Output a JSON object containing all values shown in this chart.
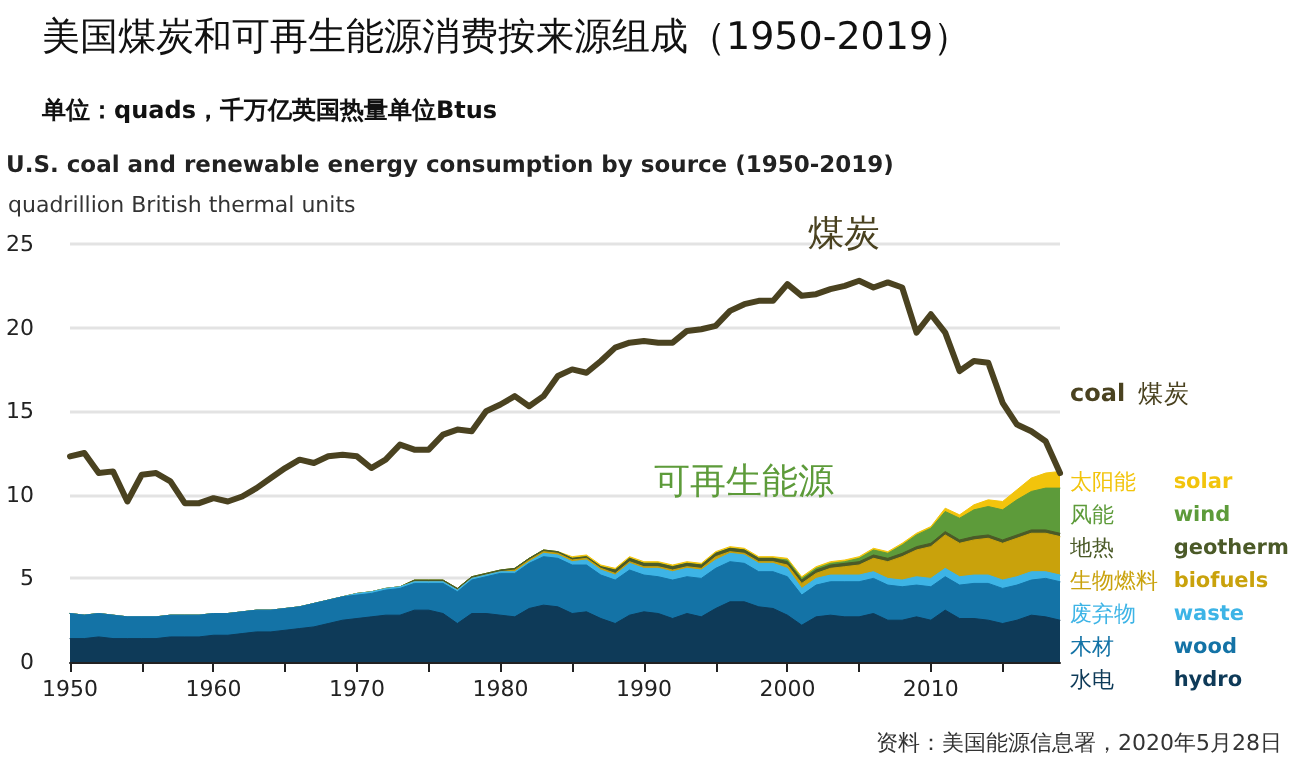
{
  "chart_data": {
    "type": "area",
    "title": "美国煤炭和可再生能源消费按来源组成（1950-2019）",
    "subtitle": "单位：quads，千万亿英国热量单位Btus",
    "ylabel": "quadrillion British thermal units",
    "annotations": [
      "U.S. coal and renewable energy consumption by source (1950-2019)",
      "煤炭",
      "可再生能源",
      "资料：美国能源信息署，2020年5月28日"
    ],
    "x": [
      1950,
      1951,
      1952,
      1953,
      1954,
      1955,
      1956,
      1957,
      1958,
      1959,
      1960,
      1961,
      1962,
      1963,
      1964,
      1965,
      1966,
      1967,
      1968,
      1969,
      1970,
      1971,
      1972,
      1973,
      1974,
      1975,
      1976,
      1977,
      1978,
      1979,
      1980,
      1981,
      1982,
      1983,
      1984,
      1985,
      1986,
      1987,
      1988,
      1989,
      1990,
      1991,
      1992,
      1993,
      1994,
      1995,
      1996,
      1997,
      1998,
      1999,
      2000,
      2001,
      2002,
      2003,
      2004,
      2005,
      2006,
      2007,
      2008,
      2009,
      2010,
      2011,
      2012,
      2013,
      2014,
      2015,
      2016,
      2017,
      2018,
      2019
    ],
    "stacked": true,
    "xlim": [
      1950,
      2019
    ],
    "ylim": [
      0,
      25
    ],
    "xticks": [
      1950,
      {
        "value": 1955,
        "label": null
      },
      1960,
      {
        "value": 1965,
        "label": null
      },
      1970,
      {
        "value": 1975,
        "label": null
      },
      1980,
      {
        "value": 1985,
        "label": null
      },
      1990,
      {
        "value": 1995,
        "label": null
      },
      2000,
      {
        "value": 2005,
        "label": null
      },
      2010,
      {
        "value": 2015,
        "label": null
      }
    ],
    "yticks": [
      0,
      5,
      10,
      15,
      20,
      25
    ],
    "grid": "y",
    "marker": "none",
    "line_style": "solid",
    "series": [
      {
        "name": "水电 hydro",
        "color": "#0e3a58",
        "values": [
          1.4,
          1.4,
          1.5,
          1.4,
          1.4,
          1.4,
          1.4,
          1.5,
          1.5,
          1.5,
          1.6,
          1.6,
          1.7,
          1.8,
          1.8,
          1.9,
          2.0,
          2.1,
          2.3,
          2.5,
          2.6,
          2.7,
          2.8,
          2.8,
          3.1,
          3.1,
          2.9,
          2.3,
          2.9,
          2.9,
          2.8,
          2.7,
          3.2,
          3.4,
          3.3,
          2.9,
          3.0,
          2.6,
          2.3,
          2.8,
          3.0,
          2.9,
          2.6,
          2.9,
          2.7,
          3.2,
          3.6,
          3.6,
          3.3,
          3.2,
          2.8,
          2.2,
          2.7,
          2.8,
          2.7,
          2.7,
          2.9,
          2.5,
          2.5,
          2.7,
          2.5,
          3.1,
          2.6,
          2.6,
          2.5,
          2.3,
          2.5,
          2.8,
          2.7,
          2.5
        ]
      },
      {
        "name": "木材 wood",
        "color": "#1473a6",
        "values": [
          1.5,
          1.4,
          1.4,
          1.4,
          1.3,
          1.3,
          1.3,
          1.3,
          1.3,
          1.3,
          1.3,
          1.3,
          1.3,
          1.3,
          1.3,
          1.3,
          1.3,
          1.4,
          1.4,
          1.4,
          1.4,
          1.4,
          1.5,
          1.6,
          1.6,
          1.6,
          1.8,
          1.9,
          2.0,
          2.2,
          2.5,
          2.6,
          2.7,
          2.9,
          2.9,
          2.9,
          2.8,
          2.6,
          2.6,
          2.7,
          2.2,
          2.2,
          2.3,
          2.2,
          2.3,
          2.4,
          2.4,
          2.3,
          2.1,
          2.2,
          2.3,
          1.8,
          1.9,
          2.0,
          2.1,
          2.1,
          2.1,
          2.1,
          2.0,
          1.9,
          2.0,
          2.0,
          2.0,
          2.1,
          2.2,
          2.1,
          2.1,
          2.1,
          2.3,
          2.3
        ]
      },
      {
        "name": "废弃物 waste",
        "color": "#3db4e6",
        "values": [
          0,
          0,
          0,
          0,
          0,
          0,
          0,
          0,
          0,
          0,
          0,
          0,
          0,
          0,
          0,
          0,
          0,
          0,
          0,
          0,
          0.1,
          0.1,
          0.1,
          0.1,
          0.1,
          0.1,
          0.1,
          0.1,
          0.1,
          0.1,
          0.1,
          0.1,
          0.1,
          0.2,
          0.2,
          0.2,
          0.3,
          0.3,
          0.3,
          0.4,
          0.4,
          0.5,
          0.5,
          0.5,
          0.5,
          0.5,
          0.5,
          0.5,
          0.5,
          0.5,
          0.5,
          0.4,
          0.4,
          0.4,
          0.4,
          0.4,
          0.4,
          0.4,
          0.4,
          0.5,
          0.5,
          0.5,
          0.5,
          0.5,
          0.5,
          0.5,
          0.5,
          0.5,
          0.4,
          0.4
        ]
      },
      {
        "name": "生物燃料 biofuels",
        "color": "#c9a20c",
        "values": [
          0,
          0,
          0,
          0,
          0,
          0,
          0,
          0,
          0,
          0,
          0,
          0,
          0,
          0,
          0,
          0,
          0,
          0,
          0,
          0,
          0,
          0,
          0,
          0,
          0,
          0,
          0,
          0,
          0,
          0,
          0,
          0.1,
          0.1,
          0.1,
          0.1,
          0.1,
          0.1,
          0.1,
          0.1,
          0.1,
          0.1,
          0.1,
          0.1,
          0.1,
          0.1,
          0.2,
          0.1,
          0.1,
          0.1,
          0.1,
          0.2,
          0.3,
          0.3,
          0.4,
          0.5,
          0.6,
          0.8,
          1.0,
          1.4,
          1.6,
          1.9,
          2.0,
          2.0,
          2.1,
          2.2,
          2.2,
          2.3,
          2.3,
          2.3,
          2.3
        ]
      },
      {
        "name": "地热 geotherm",
        "color": "#4b5a28",
        "values": [
          0,
          0,
          0,
          0,
          0,
          0,
          0,
          0,
          0,
          0,
          0,
          0,
          0,
          0,
          0,
          0,
          0,
          0,
          0,
          0,
          0,
          0,
          0,
          0,
          0.1,
          0.1,
          0.1,
          0.1,
          0.1,
          0.1,
          0.1,
          0.1,
          0.1,
          0.1,
          0.1,
          0.1,
          0.1,
          0.1,
          0.2,
          0.2,
          0.2,
          0.2,
          0.2,
          0.2,
          0.2,
          0.2,
          0.2,
          0.2,
          0.2,
          0.2,
          0.2,
          0.2,
          0.2,
          0.2,
          0.2,
          0.2,
          0.2,
          0.2,
          0.2,
          0.2,
          0.2,
          0.2,
          0.2,
          0.2,
          0.2,
          0.2,
          0.2,
          0.2,
          0.2,
          0.2
        ]
      },
      {
        "name": "风能 wind",
        "color": "#5d9b3a",
        "values": [
          0,
          0,
          0,
          0,
          0,
          0,
          0,
          0,
          0,
          0,
          0,
          0,
          0,
          0,
          0,
          0,
          0,
          0,
          0,
          0,
          0,
          0,
          0,
          0,
          0,
          0,
          0,
          0,
          0,
          0,
          0,
          0,
          0,
          0,
          0,
          0,
          0,
          0,
          0,
          0,
          0,
          0,
          0,
          0,
          0,
          0,
          0,
          0,
          0,
          0,
          0.1,
          0.1,
          0.1,
          0.1,
          0.1,
          0.2,
          0.3,
          0.3,
          0.5,
          0.7,
          0.9,
          1.2,
          1.3,
          1.6,
          1.7,
          1.8,
          2.1,
          2.3,
          2.5,
          2.7
        ]
      },
      {
        "name": "太阳能 solar",
        "color": "#f2c40c",
        "values": [
          0,
          0,
          0,
          0,
          0,
          0,
          0,
          0,
          0,
          0,
          0,
          0,
          0,
          0,
          0,
          0,
          0,
          0,
          0,
          0,
          0,
          0,
          0,
          0,
          0,
          0,
          0,
          0,
          0,
          0,
          0,
          0,
          0,
          0,
          0,
          0.1,
          0.1,
          0.1,
          0.1,
          0.1,
          0.1,
          0.1,
          0.1,
          0.1,
          0.1,
          0.1,
          0.1,
          0.1,
          0.1,
          0.1,
          0.1,
          0.1,
          0.1,
          0.1,
          0.1,
          0.1,
          0.1,
          0.1,
          0.1,
          0.1,
          0.1,
          0.2,
          0.2,
          0.3,
          0.4,
          0.5,
          0.6,
          0.8,
          0.9,
          1.0
        ]
      },
      {
        "name": "coal 煤炭",
        "type": "line",
        "color": "#4a4220",
        "values": [
          12.3,
          12.5,
          11.3,
          11.4,
          9.6,
          11.2,
          11.3,
          10.8,
          9.5,
          9.5,
          9.8,
          9.6,
          9.9,
          10.4,
          11.0,
          11.6,
          12.1,
          11.9,
          12.3,
          12.4,
          12.3,
          11.6,
          12.1,
          13.0,
          12.7,
          12.7,
          13.6,
          13.9,
          13.8,
          15.0,
          15.4,
          15.9,
          15.3,
          15.9,
          17.1,
          17.5,
          17.3,
          18.0,
          18.8,
          19.1,
          19.2,
          19.1,
          19.1,
          19.8,
          19.9,
          20.1,
          21.0,
          21.4,
          21.6,
          21.6,
          22.6,
          21.9,
          22.0,
          22.3,
          22.5,
          22.8,
          22.4,
          22.7,
          22.4,
          19.7,
          20.8,
          19.7,
          17.4,
          18.0,
          17.9,
          15.5,
          14.2,
          13.8,
          13.2,
          11.3
        ]
      }
    ]
  }
}
